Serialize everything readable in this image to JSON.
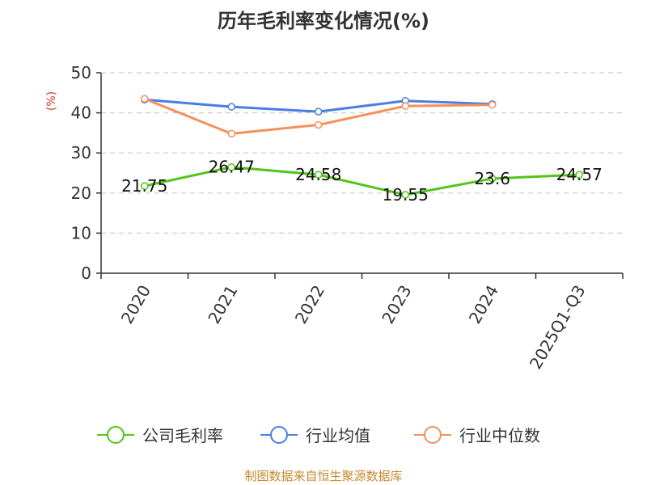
{
  "chart_data": {
    "type": "line",
    "title": "历年毛利率变化情况(%)",
    "ylabel": "(%)",
    "xlabel": "",
    "categories": [
      "2020",
      "2021",
      "2022",
      "2023",
      "2024",
      "2025Q1-Q3"
    ],
    "ylim": [
      0,
      50
    ],
    "yticks": [
      0,
      10,
      20,
      30,
      40,
      50
    ],
    "grid": true,
    "legend_position": "bottom",
    "series": [
      {
        "name": "公司毛利率",
        "color": "#52c41a",
        "values": [
          21.75,
          26.47,
          24.58,
          19.55,
          23.6,
          24.57
        ],
        "labels": [
          "21.75",
          "26.47",
          "24.58",
          "19.55",
          "23.6",
          "24.57"
        ]
      },
      {
        "name": "行业均值",
        "color": "#4a7ee0",
        "values": [
          43.3,
          41.5,
          40.3,
          43.0,
          42.2,
          null
        ]
      },
      {
        "name": "行业中位数",
        "color": "#f5905a",
        "values": [
          43.5,
          34.8,
          37.0,
          41.7,
          42.0,
          null
        ]
      }
    ]
  },
  "source": "制图数据来自恒生聚源数据库"
}
